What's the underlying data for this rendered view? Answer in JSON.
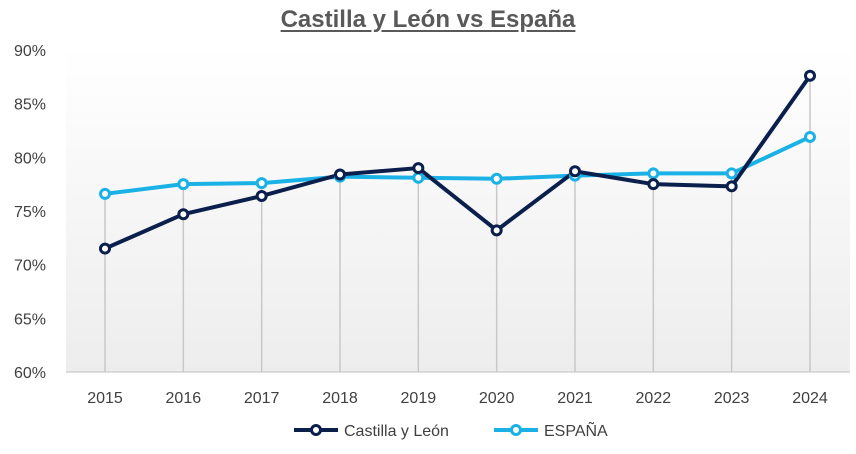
{
  "chart_data": {
    "type": "line",
    "title": "Castilla y León vs España",
    "x": [
      "2015",
      "2016",
      "2017",
      "2018",
      "2019",
      "2020",
      "2021",
      "2022",
      "2023",
      "2024"
    ],
    "series": [
      {
        "name": "Castilla y León",
        "color": "#0b1f4d",
        "values": [
          71.5,
          74.7,
          76.4,
          78.4,
          79.0,
          73.2,
          78.7,
          77.5,
          77.3,
          87.6
        ]
      },
      {
        "name": "ESPAÑA",
        "color": "#1ab2e6",
        "values": [
          76.6,
          77.5,
          77.6,
          78.2,
          78.1,
          78.0,
          78.3,
          78.5,
          78.5,
          81.9
        ]
      }
    ],
    "yticks": [
      "60%",
      "65%",
      "70%",
      "75%",
      "80%",
      "85%",
      "90%"
    ],
    "ylim": [
      60,
      90
    ],
    "xlabel": "",
    "ylabel": "",
    "legend_position": "bottom",
    "grid": "vertical drop lines"
  }
}
